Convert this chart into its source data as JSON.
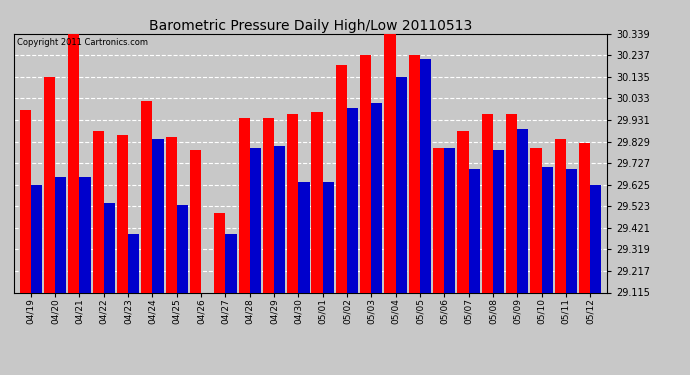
{
  "title": "Barometric Pressure Daily High/Low 20110513",
  "copyright": "Copyright 2011 Cartronics.com",
  "dates": [
    "04/19",
    "04/20",
    "04/21",
    "04/22",
    "04/23",
    "04/24",
    "04/25",
    "04/26",
    "04/27",
    "04/28",
    "04/29",
    "04/30",
    "05/01",
    "05/02",
    "05/03",
    "05/04",
    "05/05",
    "05/06",
    "05/07",
    "05/08",
    "05/09",
    "05/10",
    "05/11",
    "05/12"
  ],
  "highs": [
    29.98,
    30.135,
    30.339,
    29.88,
    29.86,
    30.02,
    29.85,
    29.79,
    29.49,
    29.94,
    29.94,
    29.96,
    29.97,
    30.19,
    30.237,
    30.339,
    30.237,
    29.8,
    29.88,
    29.96,
    29.96,
    29.8,
    29.84,
    29.82
  ],
  "lows": [
    29.625,
    29.66,
    29.66,
    29.54,
    29.39,
    29.84,
    29.53,
    29.115,
    29.39,
    29.8,
    29.81,
    29.64,
    29.64,
    29.99,
    30.01,
    30.135,
    30.22,
    29.8,
    29.7,
    29.79,
    29.89,
    29.71,
    29.7,
    29.625
  ],
  "high_color": "#ff0000",
  "low_color": "#0000cc",
  "bg_color": "#c8c8c8",
  "grid_color": "white",
  "ymin": 29.115,
  "ymax": 30.339,
  "yticks": [
    30.339,
    30.237,
    30.135,
    30.033,
    29.931,
    29.829,
    29.727,
    29.625,
    29.523,
    29.421,
    29.319,
    29.217,
    29.115
  ]
}
